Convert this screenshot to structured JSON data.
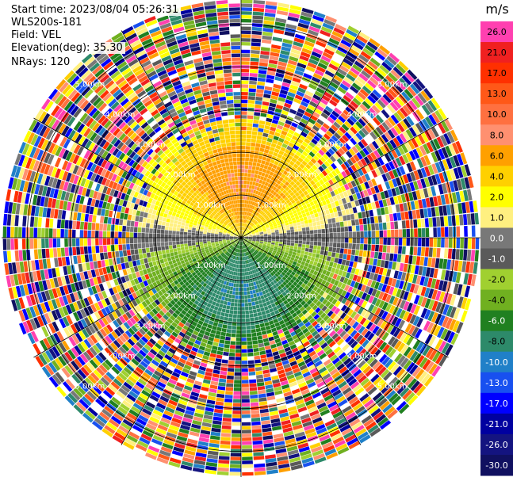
{
  "header": {
    "start_time": "Start time: 2023/08/04 05:26:31",
    "instrument": "WLS200s-181",
    "field": "Field: VEL",
    "elevation": "Elevation(deg): 35.30",
    "nrays": "NRays: 120"
  },
  "chart_data": {
    "type": "heatmap",
    "projection": "polar-ppi",
    "field": "VEL",
    "units": "m/s",
    "n_rays": 120,
    "range_rings_km": [
      1.0,
      2.0,
      3.0,
      4.0,
      5.0
    ],
    "ring_label_text": [
      "1.00km",
      "2.00km",
      "3.00km",
      "4.00km",
      "5.00km"
    ],
    "max_range_km": 5.6,
    "spoke_angles_deg": [
      0,
      30,
      60,
      90,
      120,
      150,
      180,
      210,
      240,
      270,
      300,
      330
    ],
    "colorbar": {
      "title": "m/s",
      "tick_labels": [
        "26.0",
        "21.0",
        "17.0",
        "13.0",
        "10.0",
        "8.0",
        "6.0",
        "4.0",
        "2.0",
        "1.0",
        "0.0",
        "-1.0",
        "-2.0",
        "-4.0",
        "-6.0",
        "-8.0",
        "-10.0",
        "-13.0",
        "-17.0",
        "-21.0",
        "-26.0",
        "-30.0"
      ],
      "colors": [
        "#ff40b0",
        "#f02020",
        "#ff3000",
        "#ff5818",
        "#ff7040",
        "#ff9070",
        "#ffa000",
        "#ffd000",
        "#ffff00",
        "#fff080",
        "#787878",
        "#5a5a5a",
        "#a0d030",
        "#70b020",
        "#208020",
        "#2d8a6a",
        "#2080c8",
        "#1850f0",
        "#0000ff",
        "#0000a0",
        "#141480",
        "#101060"
      ]
    },
    "velocity_pattern": {
      "description_free": true,
      "approaching_sector_center_deg": 0,
      "receding_sector_center_deg": 180,
      "valid_range_km": 2.75,
      "near_range_peak_mps": 8,
      "noise_beyond_km": 2.75
    },
    "grid": true
  }
}
